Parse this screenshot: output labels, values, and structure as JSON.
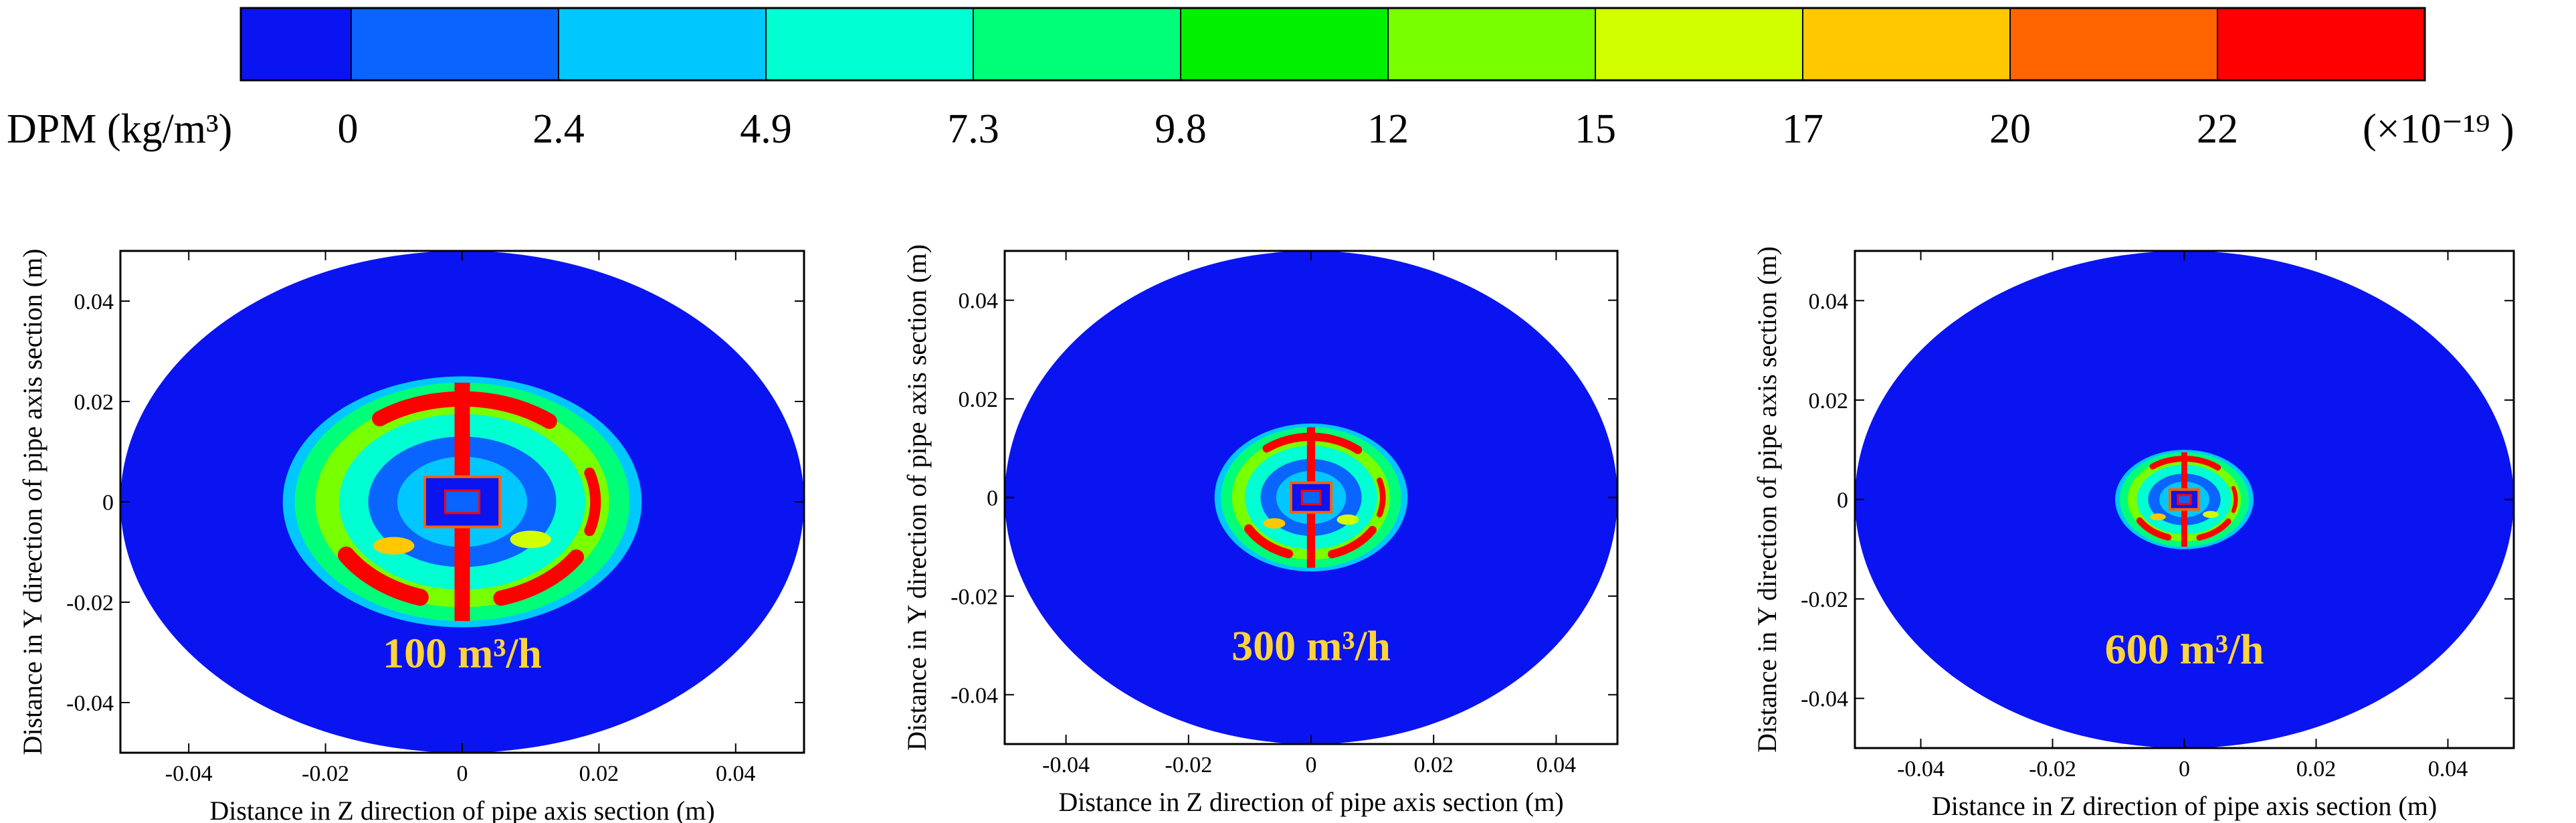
{
  "colorbar": {
    "quantity": "DPM",
    "units": "(kg/m³)",
    "tick_labels": [
      "0",
      "2.4",
      "4.9",
      "7.3",
      "9.8",
      "12",
      "15",
      "17",
      "20",
      "22"
    ],
    "multiplier": "(×10⁻¹⁹ )",
    "colors": [
      "#0a14f0",
      "#0a64ff",
      "#00c8ff",
      "#00ffd2",
      "#00ff78",
      "#00f000",
      "#78ff00",
      "#d2ff00",
      "#ffc800",
      "#ff6400",
      "#ff0000"
    ]
  },
  "chart_data": [
    {
      "type": "heatmap",
      "annotation": "100 m³/h",
      "xlabel": "Distance in Z direction of pipe axis section (m)",
      "ylabel": "Distance in Y direction of pipe axis section (m)",
      "xlim": [
        -0.05,
        0.05
      ],
      "ylim": [
        -0.05,
        0.05
      ],
      "x_ticks": [
        "-0.04",
        "-0.02",
        "0",
        "0.02",
        "0.04"
      ],
      "y_ticks": [
        "0.04",
        "0.02",
        "0",
        "-0.02",
        "-0.04"
      ],
      "pipe_radius_m": 0.05,
      "concentration_region_radius_m": 0.025
    },
    {
      "type": "heatmap",
      "annotation": "300 m³/h",
      "xlabel": "Distance in Z direction of pipe axis section (m)",
      "ylabel": "Distance in Y direction of pipe axis section (m)",
      "xlim": [
        -0.05,
        0.05
      ],
      "ylim": [
        -0.05,
        0.05
      ],
      "x_ticks": [
        "-0.04",
        "-0.02",
        "0",
        "0.02",
        "0.04"
      ],
      "y_ticks": [
        "0.04",
        "0.02",
        "0",
        "-0.02",
        "-0.04"
      ],
      "pipe_radius_m": 0.05,
      "concentration_region_radius_m": 0.015
    },
    {
      "type": "heatmap",
      "annotation": "600 m³/h",
      "xlabel": "Distance in Z direction of pipe axis section (m)",
      "ylabel": "Distance in Y direction of pipe axis section (m)",
      "xlim": [
        -0.05,
        0.05
      ],
      "ylim": [
        -0.05,
        0.05
      ],
      "x_ticks": [
        "-0.04",
        "-0.02",
        "0",
        "0.02",
        "0.04"
      ],
      "y_ticks": [
        "0.04",
        "0.02",
        "0",
        "-0.02",
        "-0.04"
      ],
      "pipe_radius_m": 0.05,
      "concentration_region_radius_m": 0.01
    }
  ]
}
